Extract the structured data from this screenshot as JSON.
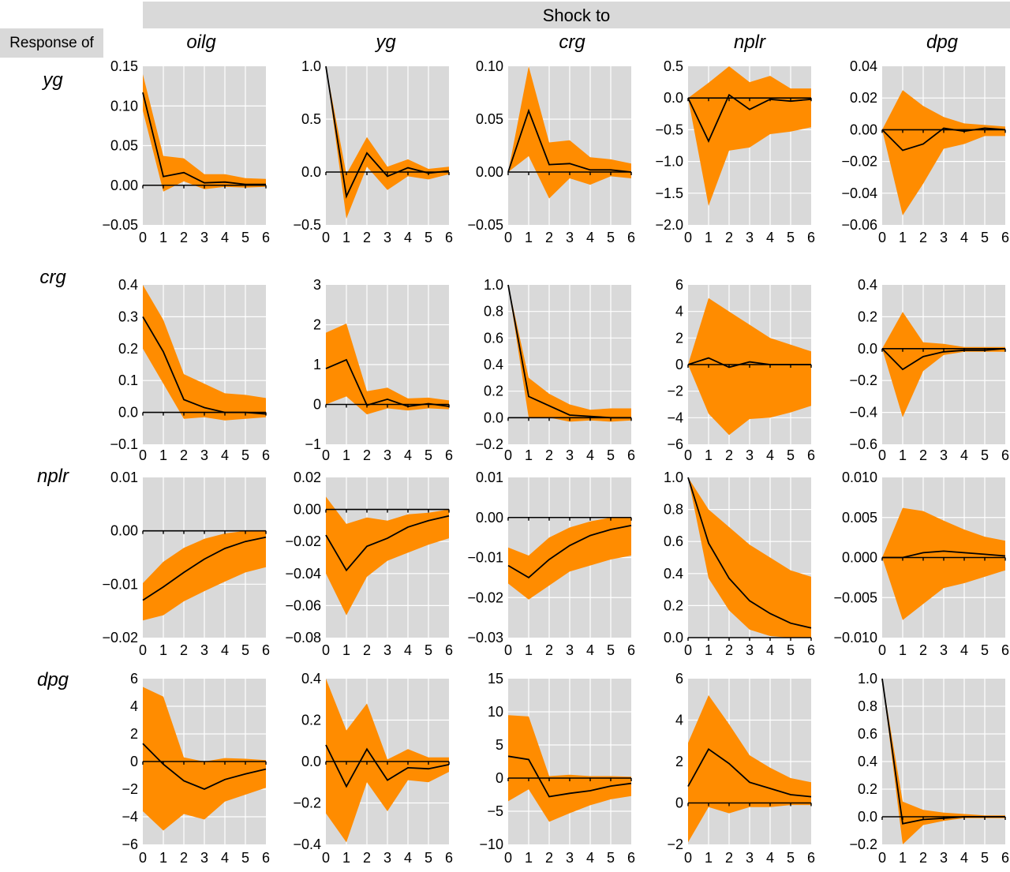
{
  "header": {
    "shock_label": "Shock to",
    "response_label": "Response of"
  },
  "shock_variables": [
    "oilg",
    "yg",
    "crg",
    "nplr",
    "dpg"
  ],
  "response_variables": [
    "yg",
    "crg",
    "nplr",
    "dpg"
  ],
  "colors": {
    "band": "#ff8c00",
    "panel_bg": "#d9d9d9",
    "grid": "#ffffff",
    "line": "#000000",
    "banner_bg": "#d9d9d9"
  },
  "chart_data": [
    {
      "type": "area",
      "response": "yg",
      "shock": "oilg",
      "x": [
        0,
        1,
        2,
        3,
        4,
        5,
        6
      ],
      "ylim": [
        -0.05,
        0.15
      ],
      "yticks": [
        "0.15",
        "0.10",
        "0.05",
        "0.00",
        "−0.05"
      ],
      "tick_values": [
        0.15,
        0.1,
        0.05,
        0.0,
        -0.05
      ],
      "median": [
        0.117,
        0.011,
        0.016,
        0.003,
        0.004,
        0.001,
        0.001
      ],
      "upper": [
        0.14,
        0.037,
        0.034,
        0.014,
        0.014,
        0.009,
        0.008
      ],
      "lower": [
        0.094,
        -0.008,
        0.005,
        -0.005,
        -0.002,
        -0.003,
        -0.002
      ]
    },
    {
      "type": "area",
      "response": "yg",
      "shock": "yg",
      "x": [
        0,
        1,
        2,
        3,
        4,
        5,
        6
      ],
      "ylim": [
        -0.5,
        1.0
      ],
      "yticks": [
        "1.0",
        "0.5",
        "0.0",
        "−0.5"
      ],
      "tick_values": [
        1.0,
        0.5,
        0.0,
        -0.5
      ],
      "median": [
        1.0,
        -0.23,
        0.18,
        -0.04,
        0.04,
        -0.01,
        0.01
      ],
      "upper": [
        1.0,
        -0.02,
        0.33,
        0.05,
        0.12,
        0.03,
        0.05
      ],
      "lower": [
        1.0,
        -0.44,
        0.05,
        -0.17,
        -0.04,
        -0.07,
        -0.02
      ]
    },
    {
      "type": "area",
      "response": "yg",
      "shock": "crg",
      "x": [
        0,
        1,
        2,
        3,
        4,
        5,
        6
      ],
      "ylim": [
        -0.05,
        0.1
      ],
      "yticks": [
        "0.10",
        "0.05",
        "0.00",
        "−0.05"
      ],
      "tick_values": [
        0.1,
        0.05,
        0.0,
        -0.05
      ],
      "median": [
        0.0,
        0.058,
        0.007,
        0.008,
        0.002,
        0.002,
        0.0
      ],
      "upper": [
        0.0,
        0.1,
        0.028,
        0.03,
        0.014,
        0.012,
        0.008
      ],
      "lower": [
        0.0,
        0.015,
        -0.025,
        -0.006,
        -0.012,
        -0.004,
        -0.006
      ]
    },
    {
      "type": "area",
      "response": "yg",
      "shock": "nplr",
      "x": [
        0,
        1,
        2,
        3,
        4,
        5,
        6
      ],
      "ylim": [
        -2.0,
        0.5
      ],
      "yticks": [
        "0.5",
        "0.0",
        "−0.5",
        "−1.0",
        "−1.5",
        "−2.0"
      ],
      "tick_values": [
        0.5,
        0.0,
        -0.5,
        -1.0,
        -1.5,
        -2.0
      ],
      "median": [
        0.0,
        -0.68,
        0.05,
        -0.18,
        -0.02,
        -0.05,
        -0.02
      ],
      "upper": [
        0.0,
        0.24,
        0.5,
        0.25,
        0.35,
        0.15,
        0.15
      ],
      "lower": [
        0.0,
        -1.7,
        -0.83,
        -0.78,
        -0.57,
        -0.53,
        -0.46
      ]
    },
    {
      "type": "area",
      "response": "yg",
      "shock": "dpg",
      "x": [
        0,
        1,
        2,
        3,
        4,
        5,
        6
      ],
      "ylim": [
        -0.06,
        0.04
      ],
      "yticks": [
        "0.04",
        "0.02",
        "0.00",
        "−0.02",
        "−0.04",
        "−0.06"
      ],
      "tick_values": [
        0.04,
        0.02,
        0.0,
        -0.02,
        -0.04,
        -0.06
      ],
      "median": [
        0.0,
        -0.013,
        -0.009,
        0.001,
        -0.001,
        0.001,
        0.0
      ],
      "upper": [
        0.0,
        0.025,
        0.015,
        0.008,
        0.004,
        0.003,
        0.002
      ],
      "lower": [
        0.0,
        -0.054,
        -0.034,
        -0.012,
        -0.009,
        -0.004,
        -0.004
      ]
    },
    {
      "type": "area",
      "response": "crg",
      "shock": "oilg",
      "x": [
        0,
        1,
        2,
        3,
        4,
        5,
        6
      ],
      "ylim": [
        -0.1,
        0.4
      ],
      "yticks": [
        "0.4",
        "0.3",
        "0.2",
        "0.1",
        "0.0",
        "−0.1"
      ],
      "tick_values": [
        0.4,
        0.3,
        0.2,
        0.1,
        0.0,
        -0.1
      ],
      "median": [
        0.3,
        0.19,
        0.04,
        0.015,
        0.0,
        0.0,
        -0.005
      ],
      "upper": [
        0.4,
        0.29,
        0.12,
        0.09,
        0.06,
        0.055,
        0.045
      ],
      "lower": [
        0.2,
        0.09,
        -0.02,
        -0.015,
        -0.025,
        -0.02,
        -0.015
      ]
    },
    {
      "type": "area",
      "response": "crg",
      "shock": "yg",
      "x": [
        0,
        1,
        2,
        3,
        4,
        5,
        6
      ],
      "ylim": [
        -1,
        3
      ],
      "yticks": [
        "3",
        "2",
        "1",
        "0",
        "−1"
      ],
      "tick_values": [
        3,
        2,
        1,
        0,
        -1
      ],
      "median": [
        0.9,
        1.12,
        -0.02,
        0.13,
        -0.05,
        0.02,
        -0.05
      ],
      "upper": [
        1.8,
        2.03,
        0.33,
        0.42,
        0.15,
        0.17,
        0.1
      ],
      "lower": [
        0.0,
        0.2,
        -0.25,
        -0.1,
        -0.15,
        -0.1,
        -0.12
      ]
    },
    {
      "type": "area",
      "response": "crg",
      "shock": "crg",
      "x": [
        0,
        1,
        2,
        3,
        4,
        5,
        6
      ],
      "ylim": [
        -0.2,
        1.0
      ],
      "yticks": [
        "1.0",
        "0.8",
        "0.6",
        "0.4",
        "0.2",
        "0.0",
        "−0.2"
      ],
      "tick_values": [
        1.0,
        0.8,
        0.6,
        0.4,
        0.2,
        0.0,
        -0.2
      ],
      "median": [
        1.0,
        0.16,
        0.09,
        0.02,
        0.01,
        0.0,
        0.0
      ],
      "upper": [
        1.0,
        0.3,
        0.18,
        0.1,
        0.06,
        0.07,
        0.07
      ],
      "lower": [
        1.0,
        0.0,
        0.0,
        -0.03,
        -0.02,
        -0.03,
        -0.02
      ]
    },
    {
      "type": "area",
      "response": "crg",
      "shock": "nplr",
      "x": [
        0,
        1,
        2,
        3,
        4,
        5,
        6
      ],
      "ylim": [
        -6,
        6
      ],
      "yticks": [
        "6",
        "4",
        "2",
        "0",
        "−2",
        "−4",
        "−6"
      ],
      "tick_values": [
        6,
        4,
        2,
        0,
        -2,
        -4,
        -6
      ],
      "median": [
        0.0,
        0.5,
        -0.2,
        0.2,
        0.0,
        0.0,
        0.0
      ],
      "upper": [
        0.0,
        5.0,
        4.0,
        3.0,
        2.0,
        1.5,
        1.0
      ],
      "lower": [
        0.0,
        -3.7,
        -5.3,
        -4.1,
        -4.0,
        -3.6,
        -3.1
      ]
    },
    {
      "type": "area",
      "response": "crg",
      "shock": "dpg",
      "x": [
        0,
        1,
        2,
        3,
        4,
        5,
        6
      ],
      "ylim": [
        -0.6,
        0.4
      ],
      "yticks": [
        "0.4",
        "0.2",
        "0.0",
        "−0.2",
        "−0.4",
        "−0.6"
      ],
      "tick_values": [
        0.4,
        0.2,
        0.0,
        -0.2,
        -0.4,
        -0.6
      ],
      "median": [
        0.0,
        -0.13,
        -0.05,
        -0.02,
        -0.01,
        -0.01,
        0.0
      ],
      "upper": [
        0.0,
        0.23,
        0.04,
        0.03,
        0.01,
        0.01,
        0.01
      ],
      "lower": [
        0.0,
        -0.43,
        -0.14,
        -0.04,
        -0.02,
        -0.02,
        -0.02
      ]
    },
    {
      "type": "area",
      "response": "nplr",
      "shock": "oilg",
      "x": [
        0,
        1,
        2,
        3,
        4,
        5,
        6
      ],
      "ylim": [
        -0.02,
        0.01
      ],
      "yticks": [
        "0.01",
        "0.00",
        "−0.01",
        "−0.02"
      ],
      "tick_values": [
        0.01,
        0.0,
        -0.01,
        -0.02
      ],
      "median": [
        -0.013,
        -0.0105,
        -0.0078,
        -0.0053,
        -0.0033,
        -0.002,
        -0.0012
      ],
      "upper": [
        -0.0098,
        -0.0058,
        -0.0032,
        -0.0015,
        -0.0005,
        0.0,
        0.0
      ],
      "lower": [
        -0.0168,
        -0.0158,
        -0.0132,
        -0.0113,
        -0.0095,
        -0.0078,
        -0.0068
      ]
    },
    {
      "type": "area",
      "response": "nplr",
      "shock": "yg",
      "x": [
        0,
        1,
        2,
        3,
        4,
        5,
        6
      ],
      "ylim": [
        -0.08,
        0.02
      ],
      "yticks": [
        "0.02",
        "0.00",
        "−0.02",
        "−0.04",
        "−0.06",
        "−0.08"
      ],
      "tick_values": [
        0.02,
        0.0,
        -0.02,
        -0.04,
        -0.06,
        -0.08
      ],
      "median": [
        -0.016,
        -0.038,
        -0.023,
        -0.018,
        -0.011,
        -0.007,
        -0.004
      ],
      "upper": [
        0.008,
        -0.009,
        -0.005,
        -0.007,
        -0.003,
        -0.002,
        0.0
      ],
      "lower": [
        -0.04,
        -0.066,
        -0.042,
        -0.032,
        -0.027,
        -0.022,
        -0.018
      ]
    },
    {
      "type": "area",
      "response": "nplr",
      "shock": "crg",
      "x": [
        0,
        1,
        2,
        3,
        4,
        5,
        6
      ],
      "ylim": [
        -0.03,
        0.01
      ],
      "yticks": [
        "0.01",
        "0.00",
        "−0.01",
        "−0.02",
        "−0.03"
      ],
      "tick_values": [
        0.01,
        0.0,
        -0.01,
        -0.02,
        -0.03
      ],
      "median": [
        -0.012,
        -0.015,
        -0.0105,
        -0.007,
        -0.0045,
        -0.003,
        -0.002
      ],
      "upper": [
        -0.0075,
        -0.0095,
        -0.005,
        -0.0025,
        -0.001,
        0.0,
        0.0
      ],
      "lower": [
        -0.0165,
        -0.0205,
        -0.017,
        -0.0135,
        -0.012,
        -0.0105,
        -0.0095
      ]
    },
    {
      "type": "area",
      "response": "nplr",
      "shock": "nplr",
      "x": [
        0,
        1,
        2,
        3,
        4,
        5,
        6
      ],
      "ylim": [
        0.0,
        1.0
      ],
      "yticks": [
        "1.0",
        "0.8",
        "0.6",
        "0.4",
        "0.2",
        "0.0"
      ],
      "tick_values": [
        1.0,
        0.8,
        0.6,
        0.4,
        0.2,
        0.0
      ],
      "median": [
        1.0,
        0.59,
        0.37,
        0.23,
        0.15,
        0.09,
        0.06
      ],
      "upper": [
        1.0,
        0.8,
        0.69,
        0.58,
        0.5,
        0.42,
        0.38
      ],
      "lower": [
        1.0,
        0.37,
        0.17,
        0.05,
        0.01,
        0.0,
        0.0
      ]
    },
    {
      "type": "area",
      "response": "nplr",
      "shock": "dpg",
      "x": [
        0,
        1,
        2,
        3,
        4,
        5,
        6
      ],
      "ylim": [
        -0.01,
        0.01
      ],
      "yticks": [
        "0.010",
        "0.005",
        "0.000",
        "−0.005",
        "−0.010"
      ],
      "tick_values": [
        0.01,
        0.005,
        0.0,
        -0.005,
        -0.01
      ],
      "median": [
        0.0,
        0.0,
        0.0006,
        0.0008,
        0.0006,
        0.0004,
        0.0002
      ],
      "upper": [
        0.0,
        0.0062,
        0.0058,
        0.0046,
        0.0035,
        0.0026,
        0.0021
      ],
      "lower": [
        0.0,
        -0.0078,
        -0.0058,
        -0.0038,
        -0.0032,
        -0.0024,
        -0.0016
      ]
    },
    {
      "type": "area",
      "response": "dpg",
      "shock": "oilg",
      "x": [
        0,
        1,
        2,
        3,
        4,
        5,
        6
      ],
      "ylim": [
        -6,
        6
      ],
      "yticks": [
        "6",
        "4",
        "2",
        "0",
        "−2",
        "−4",
        "−6"
      ],
      "tick_values": [
        6,
        4,
        2,
        0,
        -2,
        -4,
        -6
      ],
      "median": [
        1.3,
        -0.2,
        -1.4,
        -2.0,
        -1.3,
        -0.9,
        -0.55
      ],
      "upper": [
        5.4,
        4.7,
        0.3,
        0.0,
        0.25,
        0.2,
        0.1
      ],
      "lower": [
        -3.6,
        -5.0,
        -3.8,
        -4.2,
        -2.9,
        -2.4,
        -1.9
      ]
    },
    {
      "type": "area",
      "response": "dpg",
      "shock": "yg",
      "x": [
        0,
        1,
        2,
        3,
        4,
        5,
        6
      ],
      "ylim": [
        -0.4,
        0.4
      ],
      "yticks": [
        "0.4",
        "0.2",
        "0.0",
        "−0.2",
        "−0.4"
      ],
      "tick_values": [
        0.4,
        0.2,
        0.0,
        -0.2,
        -0.4
      ],
      "median": [
        0.08,
        -0.12,
        0.06,
        -0.09,
        -0.03,
        -0.035,
        -0.015
      ],
      "upper": [
        0.4,
        0.15,
        0.28,
        0.01,
        0.06,
        0.02,
        0.02
      ],
      "lower": [
        -0.25,
        -0.39,
        -0.1,
        -0.24,
        -0.09,
        -0.1,
        -0.05
      ]
    },
    {
      "type": "area",
      "response": "dpg",
      "shock": "crg",
      "x": [
        0,
        1,
        2,
        3,
        4,
        5,
        6
      ],
      "ylim": [
        -10,
        15
      ],
      "yticks": [
        "15",
        "10",
        "5",
        "0",
        "−5",
        "−10"
      ],
      "tick_values": [
        15,
        10,
        5,
        0,
        -5,
        -10
      ],
      "median": [
        3.3,
        2.8,
        -2.8,
        -2.3,
        -1.9,
        -1.2,
        -0.8
      ],
      "upper": [
        9.5,
        9.3,
        0.3,
        0.5,
        0.3,
        0.3,
        0.2
      ],
      "lower": [
        -3.5,
        -1.7,
        -6.6,
        -5.3,
        -4.1,
        -3.2,
        -2.7
      ]
    },
    {
      "type": "area",
      "response": "dpg",
      "shock": "nplr",
      "x": [
        0,
        1,
        2,
        3,
        4,
        5,
        6
      ],
      "ylim": [
        -2,
        6
      ],
      "yticks": [
        "6",
        "4",
        "2",
        "0",
        "−2"
      ],
      "tick_values": [
        6,
        4,
        2,
        0,
        -2
      ],
      "median": [
        0.8,
        2.6,
        1.9,
        1.0,
        0.7,
        0.4,
        0.3
      ],
      "upper": [
        2.9,
        5.2,
        3.8,
        2.3,
        1.7,
        1.2,
        1.0
      ],
      "lower": [
        -1.9,
        -0.2,
        -0.5,
        -0.2,
        -0.2,
        -0.1,
        -0.1
      ]
    },
    {
      "type": "area",
      "response": "dpg",
      "shock": "dpg",
      "x": [
        0,
        1,
        2,
        3,
        4,
        5,
        6
      ],
      "ylim": [
        -0.2,
        1.0
      ],
      "yticks": [
        "1.0",
        "0.8",
        "0.6",
        "0.4",
        "0.2",
        "0.0",
        "−0.2"
      ],
      "tick_values": [
        1.0,
        0.8,
        0.6,
        0.4,
        0.2,
        0.0,
        -0.2
      ],
      "median": [
        1.0,
        -0.05,
        -0.02,
        -0.01,
        0.0,
        0.0,
        0.0
      ],
      "upper": [
        1.0,
        0.11,
        0.05,
        0.03,
        0.02,
        0.01,
        0.01
      ],
      "lower": [
        1.0,
        -0.2,
        -0.06,
        -0.03,
        -0.01,
        -0.01,
        -0.01
      ]
    }
  ]
}
